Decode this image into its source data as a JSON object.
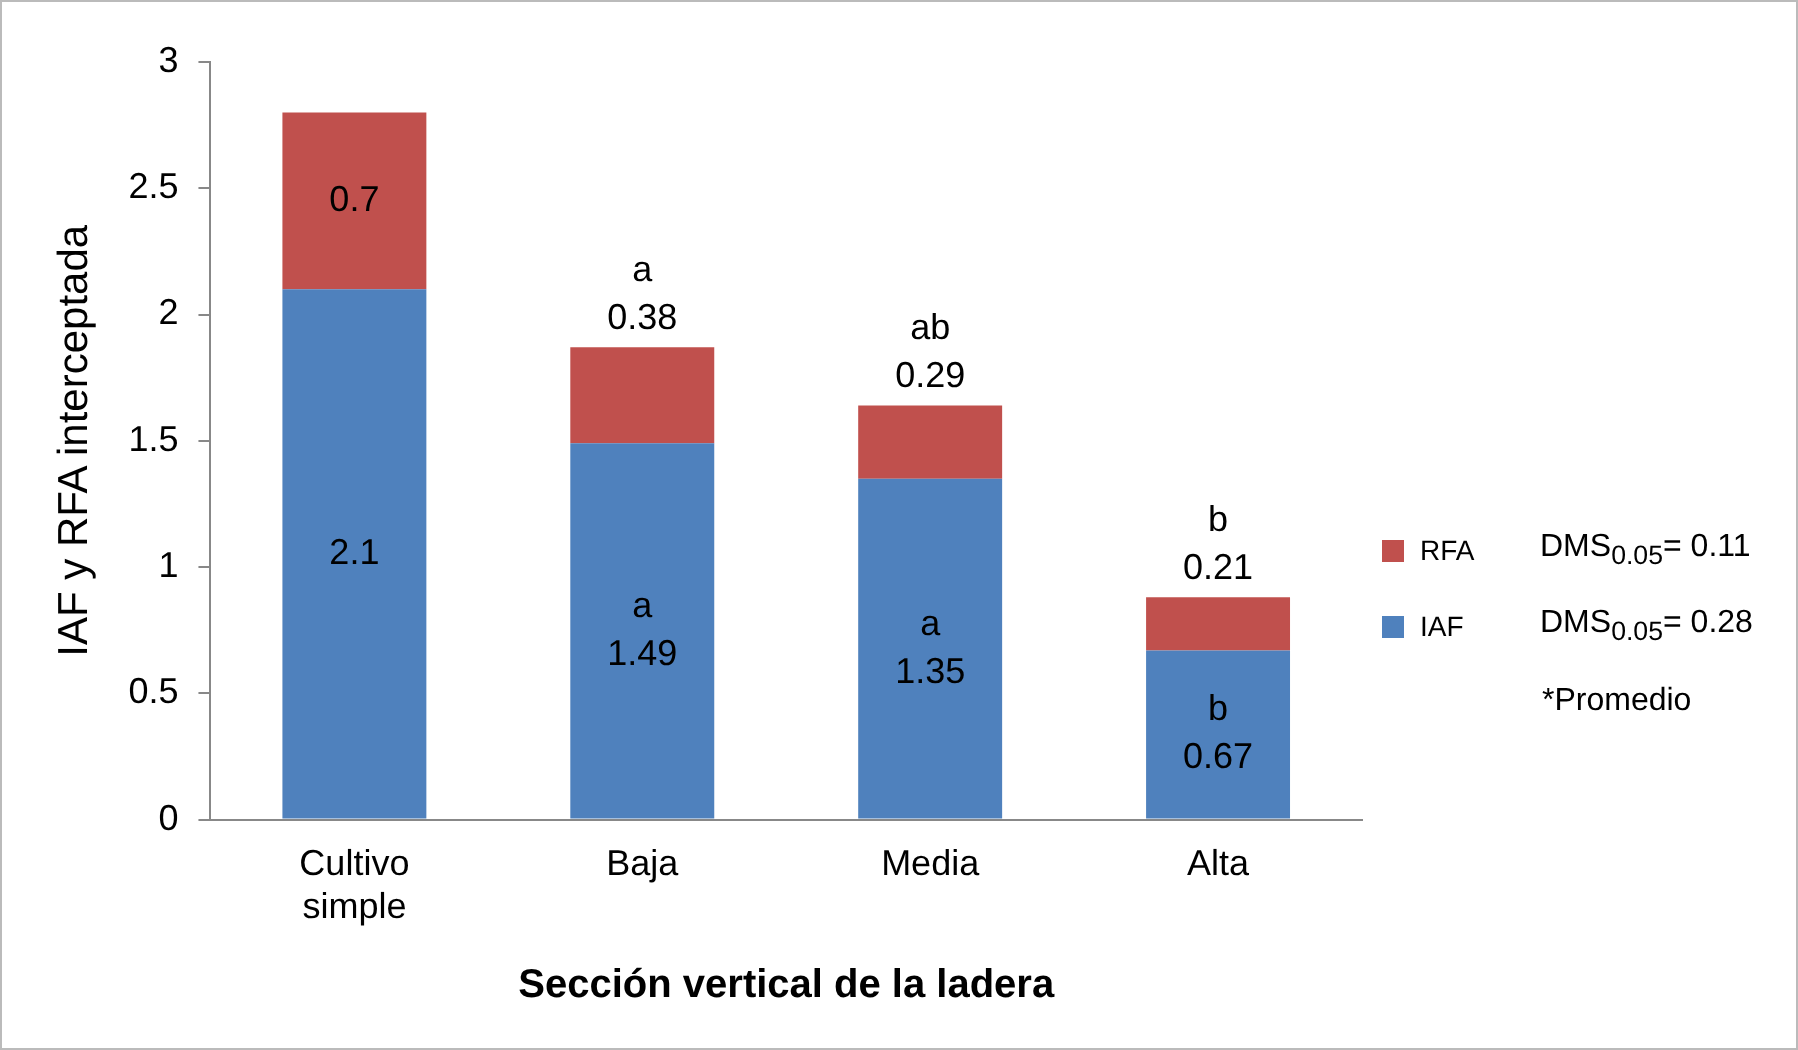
{
  "chart_data": {
    "type": "bar",
    "stacked": true,
    "xlabel": "Sección vertical de la ladera",
    "ylabel": "IAF y RFA interceptada",
    "categories": [
      "Cultivo\nsimple",
      "Baja",
      "Media",
      "Alta"
    ],
    "series": [
      {
        "name": "IAF",
        "color": "#4f81bd",
        "values": [
          2.1,
          1.49,
          1.35,
          0.67
        ],
        "value_labels": [
          "2.1",
          "a\n1.49",
          "a\n1.35",
          "b\n0.67"
        ]
      },
      {
        "name": "RFA",
        "color": "#c0504d",
        "values": [
          0.7,
          0.38,
          0.29,
          0.21
        ],
        "value_labels": [
          "0.7",
          "a\n0.38",
          "ab\n0.29",
          "b\n0.21"
        ]
      }
    ],
    "ylim": [
      0,
      3
    ],
    "yticks": [
      0,
      0.5,
      1,
      1.5,
      2,
      2.5,
      3
    ],
    "grid": false,
    "legend": "right",
    "annotations": [
      "DMS$_{0.05}$= 0.28",
      "DMS$_{0.05}$= 0.11",
      "*Promedio"
    ]
  }
}
